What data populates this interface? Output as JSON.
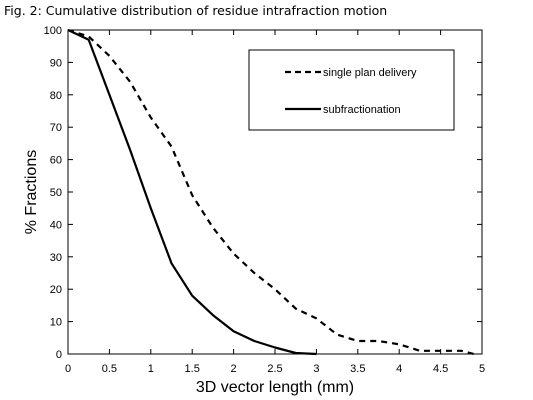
{
  "title": "Fig. 2: Cumulative distribution of residue intrafraction motion",
  "chart_data": {
    "type": "line",
    "title": "Fig. 2: Cumulative distribution of residue intrafraction motion",
    "xlabel": "3D vector length (mm)",
    "ylabel": "% Fractions",
    "xlim": [
      0,
      5
    ],
    "ylim": [
      0,
      100
    ],
    "xticks": [
      "0",
      "0.5",
      "1",
      "1.5",
      "2",
      "2.5",
      "3",
      "3.5",
      "4",
      "4.5",
      "5"
    ],
    "yticks": [
      "0",
      "10",
      "20",
      "30",
      "40",
      "50",
      "60",
      "70",
      "80",
      "90",
      "100"
    ],
    "grid": false,
    "legend_position": "top-right",
    "series": [
      {
        "name": "single plan delivery",
        "style": "dashed",
        "x": [
          0,
          0.25,
          0.5,
          0.75,
          1.0,
          1.25,
          1.5,
          1.75,
          2.0,
          2.25,
          2.5,
          2.75,
          3.0,
          3.25,
          3.5,
          3.75,
          4.0,
          4.25,
          4.5,
          4.75,
          4.9
        ],
        "y": [
          100,
          98,
          92,
          84,
          73,
          64,
          49,
          39,
          31,
          25,
          20,
          14,
          11,
          6,
          4,
          4,
          3,
          1,
          1,
          1,
          0
        ]
      },
      {
        "name": "subfractionation",
        "style": "solid",
        "x": [
          0,
          0.25,
          0.5,
          0.75,
          1.0,
          1.25,
          1.5,
          1.75,
          2.0,
          2.25,
          2.5,
          2.75,
          3.0
        ],
        "y": [
          100,
          97,
          80,
          63,
          45,
          28,
          18,
          12,
          7,
          4,
          2,
          0.3,
          0
        ]
      }
    ]
  }
}
